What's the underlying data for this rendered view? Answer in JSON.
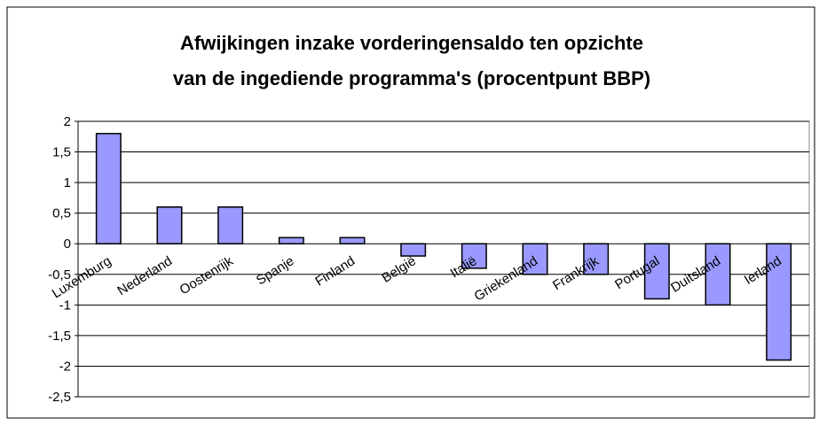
{
  "chart_data": {
    "type": "bar",
    "title": [
      "Afwijkingen inzake vorderingensaldo ten opzichte",
      "van de ingediende programma's (procentpunt BBP)"
    ],
    "categories": [
      "Luxemburg",
      "Nederland",
      "Oostenrijk",
      "Spanje",
      "Finland",
      "België",
      "Italië",
      "Griekenland",
      "Frankrijk",
      "Portugal",
      "Duitsland",
      "Ierland"
    ],
    "values": [
      1.8,
      0.6,
      0.6,
      0.1,
      0.1,
      -0.2,
      -0.4,
      -0.5,
      -0.5,
      -0.9,
      -1.0,
      -1.9
    ],
    "color": "#9999ff",
    "ylim": [
      -2.5,
      2
    ],
    "yticks": [
      2,
      {
        "value": 1.5,
        "label": "1,5"
      },
      1,
      {
        "value": 0.5,
        "label": "0,5"
      },
      0,
      {
        "value": -0.5,
        "label": "-0,5"
      },
      -1,
      {
        "value": -1.5,
        "label": "-1,5"
      },
      -2,
      {
        "value": -2.5,
        "label": "-2,5"
      }
    ],
    "grid": true
  }
}
